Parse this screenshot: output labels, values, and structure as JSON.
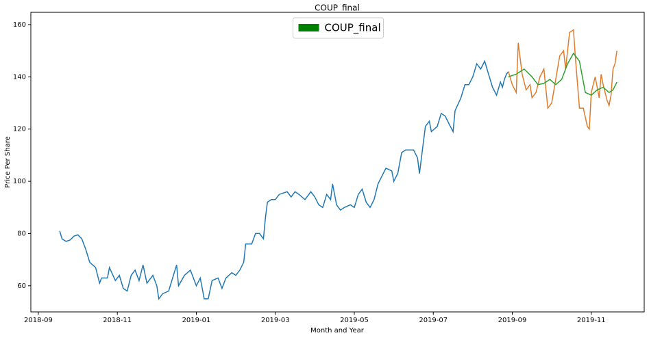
{
  "chart_data": {
    "type": "line",
    "title": "COUP_final",
    "x_label": "Month and Year",
    "y_label": "Price Per Share",
    "legend": {
      "label": "COUP_final",
      "color": "#008000",
      "position": "upper center"
    },
    "xlim": [
      -0.19,
      15.34
    ],
    "ylim": [
      50,
      164.7
    ],
    "xticks": [
      {
        "value": 0,
        "label": "2018-09"
      },
      {
        "value": 2,
        "label": "2018-11"
      },
      {
        "value": 4,
        "label": "2019-01"
      },
      {
        "value": 6,
        "label": "2019-03"
      },
      {
        "value": 8,
        "label": "2019-05"
      },
      {
        "value": 10,
        "label": "2019-07"
      },
      {
        "value": 12,
        "label": "2019-09"
      },
      {
        "value": 14,
        "label": "2019-11"
      }
    ],
    "yticks": [
      60,
      80,
      100,
      120,
      140,
      160
    ],
    "grid": false,
    "series": [
      {
        "color": "#1f77b4",
        "x": [
          0.54,
          0.6,
          0.7,
          0.8,
          0.9,
          1.0,
          1.1,
          1.2,
          1.3,
          1.45,
          1.55,
          1.6,
          1.75,
          1.8,
          1.95,
          2.05,
          2.15,
          2.25,
          2.35,
          2.45,
          2.55,
          2.65,
          2.75,
          2.9,
          3.0,
          3.05,
          3.15,
          3.3,
          3.4,
          3.5,
          3.55,
          3.7,
          3.85,
          4.0,
          4.1,
          4.2,
          4.3,
          4.4,
          4.55,
          4.65,
          4.75,
          4.9,
          5.0,
          5.1,
          5.2,
          5.25,
          5.4,
          5.5,
          5.6,
          5.7,
          5.75,
          5.8,
          5.9,
          6.0,
          6.1,
          6.3,
          6.4,
          6.5,
          6.6,
          6.75,
          6.9,
          7.0,
          7.1,
          7.2,
          7.3,
          7.4,
          7.45,
          7.55,
          7.65,
          7.75,
          7.9,
          8.0,
          8.1,
          8.2,
          8.3,
          8.4,
          8.5,
          8.6,
          8.7,
          8.8,
          8.95,
          9.0,
          9.1,
          9.2,
          9.3,
          9.4,
          9.5,
          9.6,
          9.65,
          9.75,
          9.8,
          9.9,
          9.95,
          10.1,
          10.2,
          10.3,
          10.4,
          10.5,
          10.55,
          10.7,
          10.8,
          10.9,
          11.0,
          11.1,
          11.2,
          11.3,
          11.4,
          11.5,
          11.6,
          11.7,
          11.75,
          11.8,
          11.85,
          11.9
        ],
        "values": [
          81,
          78,
          77,
          77.5,
          79,
          79.5,
          78,
          74,
          69,
          67,
          61,
          63,
          63,
          67,
          62,
          64,
          59,
          58,
          64,
          66,
          62,
          68,
          61,
          64,
          60,
          55,
          57,
          58,
          63,
          68,
          60,
          64,
          66,
          60,
          63,
          55,
          55,
          62,
          63,
          59,
          63,
          65,
          64,
          66,
          69,
          76,
          76,
          80,
          80,
          78,
          86,
          92,
          93,
          93,
          95,
          96,
          94,
          96,
          95,
          93,
          96,
          94,
          91,
          90,
          95,
          93,
          99,
          91,
          89,
          90,
          91,
          90,
          95,
          97,
          92,
          90,
          93,
          99,
          102,
          105,
          104,
          100,
          103,
          111,
          112,
          112,
          112,
          109,
          103,
          115,
          121,
          123,
          119,
          121,
          126,
          125,
          122,
          119,
          127,
          132,
          137,
          137,
          140,
          145,
          143,
          146,
          141,
          136,
          133,
          138,
          136,
          139,
          141,
          142
        ]
      },
      {
        "color": "#e07b2a",
        "x": [
          11.9,
          12.0,
          12.1,
          12.15,
          12.25,
          12.35,
          12.45,
          12.5,
          12.6,
          12.7,
          12.8,
          12.9,
          13.0,
          13.1,
          13.2,
          13.3,
          13.35,
          13.45,
          13.55,
          13.6,
          13.7,
          13.8,
          13.9,
          13.95,
          14.0,
          14.1,
          14.2,
          14.25,
          14.3,
          14.4,
          14.45,
          14.5,
          14.55,
          14.6,
          14.65
        ],
        "values": [
          142,
          137,
          134,
          153,
          141,
          135,
          137,
          132,
          134,
          140,
          143,
          128,
          130,
          139,
          148,
          150,
          143,
          157,
          158,
          147,
          128,
          128,
          121,
          120,
          134,
          140,
          132,
          141,
          137,
          131,
          129,
          133,
          143,
          145,
          150
        ]
      },
      {
        "color": "#2ca02c",
        "x": [
          11.9,
          12.1,
          12.3,
          12.5,
          12.65,
          12.8,
          12.95,
          13.1,
          13.25,
          13.4,
          13.55,
          13.7,
          13.85,
          14.0,
          14.15,
          14.3,
          14.45,
          14.55,
          14.65
        ],
        "values": [
          140,
          141,
          143,
          140,
          137,
          137.5,
          139,
          137,
          139,
          145,
          149,
          146,
          134,
          133,
          135,
          136,
          134,
          135,
          138
        ]
      }
    ]
  }
}
